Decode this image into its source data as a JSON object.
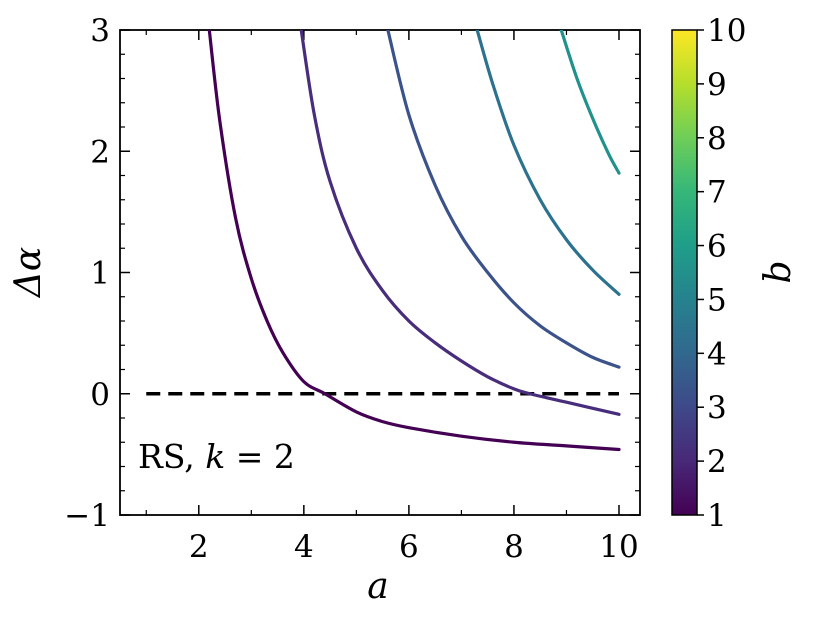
{
  "chart_data": {
    "type": "line",
    "title": "",
    "xlabel": "a",
    "ylabel": "Δα",
    "xlim": [
      0.5,
      10.4
    ],
    "ylim": [
      -1,
      3
    ],
    "xticks": [
      2,
      4,
      6,
      8,
      10
    ],
    "xtick_labels": [
      "2",
      "4",
      "6",
      "8",
      "10"
    ],
    "yticks": [
      -1,
      0,
      1,
      2,
      3
    ],
    "ytick_labels": [
      "−1",
      "0",
      "1",
      "2",
      "3"
    ],
    "grid": false,
    "annotation": {
      "prefix": "RS, ",
      "var": "k",
      "eq": " = ",
      "value": "2"
    },
    "reference_line": {
      "y": 0,
      "x_range": [
        1,
        10
      ],
      "style": "dashed",
      "color": "#000000"
    },
    "series": [
      {
        "color": "#440154",
        "x": [
          2.2,
          2.4,
          2.7,
          3.0,
          3.3,
          3.6,
          4.0,
          4.4,
          5.0,
          5.5,
          6.0,
          7.0,
          8.0,
          9.0,
          10.0
        ],
        "y": [
          3.0,
          2.25,
          1.45,
          0.95,
          0.6,
          0.34,
          0.1,
          0.0,
          -0.15,
          -0.23,
          -0.28,
          -0.35,
          -0.4,
          -0.43,
          -0.46
        ]
      },
      {
        "color": "#472d7b",
        "x": [
          3.95,
          4.2,
          4.5,
          5.0,
          5.5,
          6.0,
          6.5,
          7.0,
          7.5,
          8.0,
          8.3,
          9.0,
          10.0
        ],
        "y": [
          3.0,
          2.3,
          1.75,
          1.2,
          0.85,
          0.6,
          0.42,
          0.27,
          0.14,
          0.04,
          0.0,
          -0.07,
          -0.17
        ]
      },
      {
        "color": "#3b528b",
        "x": [
          5.6,
          6.0,
          6.5,
          7.0,
          7.5,
          8.0,
          8.5,
          9.0,
          9.5,
          10.0
        ],
        "y": [
          3.0,
          2.3,
          1.72,
          1.3,
          1.0,
          0.75,
          0.56,
          0.42,
          0.3,
          0.22
        ]
      },
      {
        "color": "#2c728e",
        "x": [
          7.3,
          7.6,
          8.0,
          8.5,
          9.0,
          9.5,
          10.0
        ],
        "y": [
          3.0,
          2.55,
          2.05,
          1.6,
          1.27,
          1.02,
          0.82
        ]
      },
      {
        "color": "#21918c",
        "x": [
          8.9,
          9.2,
          9.5,
          9.8,
          10.0
        ],
        "y": [
          3.0,
          2.6,
          2.27,
          1.98,
          1.82
        ]
      }
    ],
    "colorbar": {
      "label": "b",
      "min": 1,
      "max": 10,
      "colormap": "viridis",
      "ticks": [
        "1",
        "2",
        "3",
        "4",
        "5",
        "6",
        "7",
        "8",
        "9",
        "10"
      ],
      "stops": [
        "#440154",
        "#482878",
        "#3e4989",
        "#31688e",
        "#26828e",
        "#1f9e89",
        "#35b779",
        "#6ece58",
        "#b5de2b",
        "#fde725"
      ]
    }
  }
}
